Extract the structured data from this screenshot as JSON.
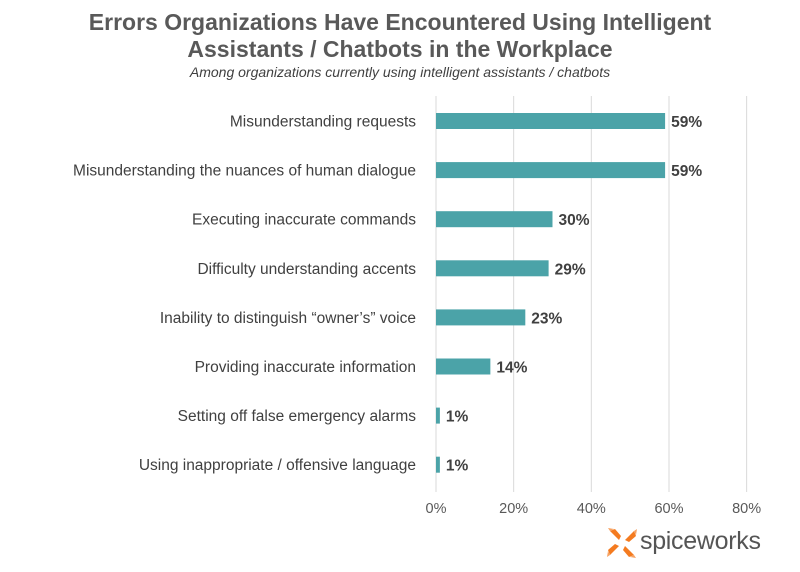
{
  "chart_data": {
    "type": "bar",
    "orientation": "horizontal",
    "title_line1": "Errors Organizations Have Encountered Using Intelligent",
    "title_line2": "Assistants / Chatbots in the Workplace",
    "subtitle": "Among organizations currently using intelligent assistants / chatbots",
    "categories": [
      "Misunderstanding requests",
      "Misunderstanding the nuances of human dialogue",
      "Executing inaccurate commands",
      "Difficulty understanding accents",
      "Inability to distinguish “owner’s” voice",
      "Providing inaccurate information",
      "Setting off false emergency alarms",
      "Using inappropriate / offensive language"
    ],
    "values": [
      59,
      59,
      30,
      29,
      23,
      14,
      1,
      1
    ],
    "value_labels": [
      "59%",
      "59%",
      "30%",
      "29%",
      "23%",
      "14%",
      "1%",
      "1%"
    ],
    "xlim": [
      0,
      80
    ],
    "x_ticks": [
      0,
      20,
      40,
      60,
      80
    ],
    "x_tick_labels": [
      "0%",
      "20%",
      "40%",
      "60%",
      "80%"
    ],
    "grid": true,
    "bar_color": "#4BA3A8",
    "gridline_color": "#D9D9D9"
  },
  "brand": {
    "logo_text": "spiceworks",
    "logo_color": "#F47B20"
  }
}
